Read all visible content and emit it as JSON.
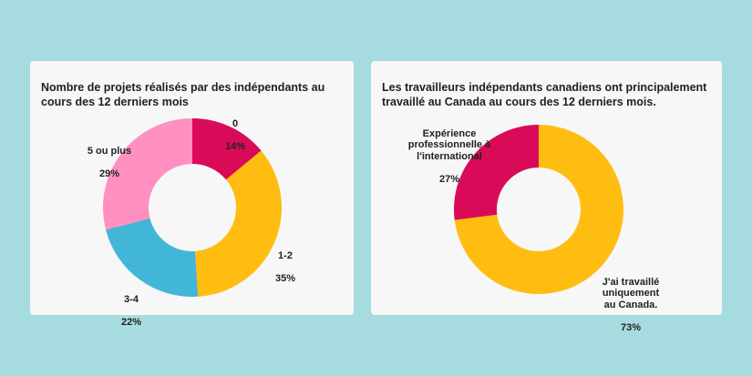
{
  "chart_data": [
    {
      "type": "pie",
      "variant": "donut",
      "title": "Nombre de projets réalisés par des indépendants au cours des 12 derniers mois",
      "categories": [
        "0",
        "1-2",
        "3-4",
        "5 ou plus"
      ],
      "values": [
        14,
        35,
        22,
        29
      ],
      "labels": [
        "14%",
        "35%",
        "22%",
        "29%"
      ],
      "colors": [
        "#d90b59",
        "#ffbd12",
        "#42b6d6",
        "#ff90c0"
      ],
      "start": "top",
      "direction": "clockwise"
    },
    {
      "type": "pie",
      "variant": "donut",
      "title": "Les travailleurs indépendants canadiens ont principalement travaillé au Canada au cours des 12 derniers mois.",
      "categories": [
        "J'ai travaillé uniquement au Canada.",
        "Expérience professionnelle à l'international"
      ],
      "values": [
        73,
        27
      ],
      "labels": [
        "73%",
        "27%"
      ],
      "colors": [
        "#ffbd12",
        "#d90b59"
      ],
      "start": "top",
      "direction": "clockwise"
    }
  ]
}
